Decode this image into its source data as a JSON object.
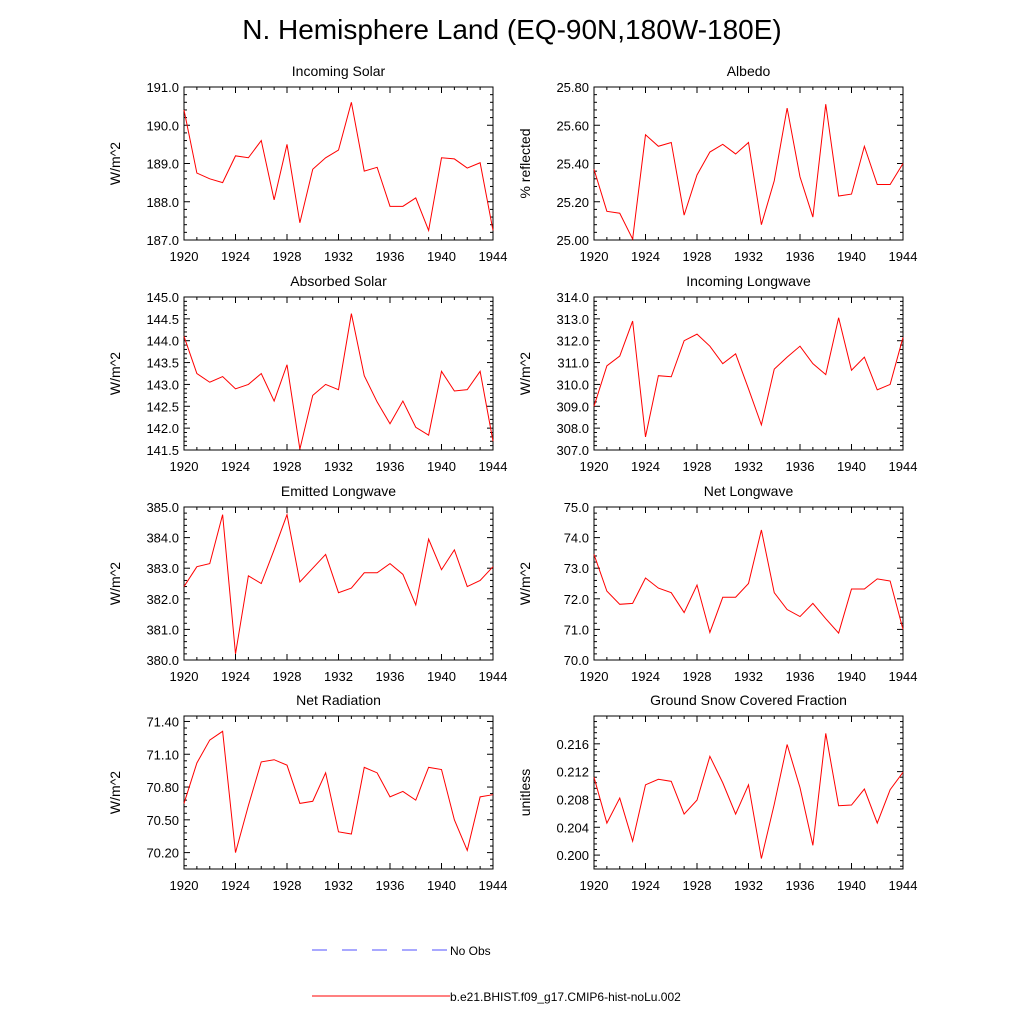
{
  "figure": {
    "title": "N. Hemisphere Land (EQ-90N,180W-180E)"
  },
  "legend": {
    "entries": [
      {
        "label": "No Obs",
        "color": "#5050ff",
        "dashed": true
      },
      {
        "label": "b.e21.BHIST.f09_g17.CMIP6-hist-noLu.002",
        "color": "#ff0000",
        "dashed": false
      }
    ]
  },
  "chart_data": [
    {
      "type": "line",
      "title": "Incoming Solar",
      "ylabel": "W/m^2",
      "xlabel": "",
      "xlim": [
        1920,
        1944
      ],
      "ylim": [
        187.0,
        191.0
      ],
      "xticks": [
        1920,
        1924,
        1928,
        1932,
        1936,
        1940,
        1944
      ],
      "yticks": [
        "187.0",
        "188.0",
        "189.0",
        "190.0",
        "191.0"
      ],
      "x": [
        1920,
        1921,
        1922,
        1923,
        1924,
        1925,
        1926,
        1927,
        1928,
        1929,
        1930,
        1931,
        1932,
        1933,
        1934,
        1935,
        1936,
        1937,
        1938,
        1939,
        1940,
        1941,
        1942,
        1943,
        1944
      ],
      "series": [
        {
          "color": "#ff0000",
          "values": [
            190.4,
            188.75,
            188.6,
            188.5,
            189.2,
            189.15,
            189.6,
            188.05,
            189.5,
            187.45,
            188.85,
            189.15,
            189.35,
            190.6,
            188.8,
            188.9,
            187.88,
            187.88,
            188.1,
            187.25,
            189.15,
            189.12,
            188.88,
            189.02,
            187.25
          ]
        }
      ]
    },
    {
      "type": "line",
      "title": "Albedo",
      "ylabel": "% reflected",
      "xlabel": "",
      "xlim": [
        1920,
        1944
      ],
      "ylim": [
        25.0,
        25.8
      ],
      "xticks": [
        1920,
        1924,
        1928,
        1932,
        1936,
        1940,
        1944
      ],
      "yticks": [
        "25.00",
        "25.20",
        "25.40",
        "25.60",
        "25.80"
      ],
      "x": [
        1920,
        1921,
        1922,
        1923,
        1924,
        1925,
        1926,
        1927,
        1928,
        1929,
        1930,
        1931,
        1932,
        1933,
        1934,
        1935,
        1936,
        1937,
        1938,
        1939,
        1940,
        1941,
        1942,
        1943,
        1944
      ],
      "series": [
        {
          "color": "#ff0000",
          "values": [
            25.37,
            25.15,
            25.14,
            25.005,
            25.55,
            25.49,
            25.51,
            25.13,
            25.34,
            25.46,
            25.5,
            25.45,
            25.51,
            25.08,
            25.31,
            25.69,
            25.33,
            25.12,
            25.71,
            25.23,
            25.24,
            25.49,
            25.29,
            25.29,
            25.4
          ]
        }
      ]
    },
    {
      "type": "line",
      "title": "Absorbed Solar",
      "ylabel": "W/m^2",
      "xlabel": "",
      "xlim": [
        1920,
        1944
      ],
      "ylim": [
        141.5,
        145.0
      ],
      "xticks": [
        1920,
        1924,
        1928,
        1932,
        1936,
        1940,
        1944
      ],
      "yticks": [
        "141.5",
        "142.0",
        "142.5",
        "143.0",
        "143.5",
        "144.0",
        "144.5",
        "145.0"
      ],
      "x": [
        1920,
        1921,
        1922,
        1923,
        1924,
        1925,
        1926,
        1927,
        1928,
        1929,
        1930,
        1931,
        1932,
        1933,
        1934,
        1935,
        1936,
        1937,
        1938,
        1939,
        1940,
        1941,
        1942,
        1943,
        1944
      ],
      "series": [
        {
          "color": "#ff0000",
          "values": [
            144.1,
            143.25,
            143.05,
            143.18,
            142.9,
            143.0,
            143.25,
            142.62,
            143.45,
            141.52,
            142.75,
            143.0,
            142.88,
            144.62,
            143.2,
            142.6,
            142.1,
            142.62,
            142.02,
            141.84,
            143.3,
            142.85,
            142.88,
            143.3,
            141.7
          ]
        }
      ]
    },
    {
      "type": "line",
      "title": "Incoming Longwave",
      "ylabel": "W/m^2",
      "xlabel": "",
      "xlim": [
        1920,
        1944
      ],
      "ylim": [
        307.0,
        314.0
      ],
      "xticks": [
        1920,
        1924,
        1928,
        1932,
        1936,
        1940,
        1944
      ],
      "yticks": [
        "307.0",
        "308.0",
        "309.0",
        "310.0",
        "311.0",
        "312.0",
        "313.0",
        "314.0"
      ],
      "x": [
        1920,
        1921,
        1922,
        1923,
        1924,
        1925,
        1926,
        1927,
        1928,
        1929,
        1930,
        1931,
        1932,
        1933,
        1934,
        1935,
        1936,
        1937,
        1938,
        1939,
        1940,
        1941,
        1942,
        1943,
        1944
      ],
      "series": [
        {
          "color": "#ff0000",
          "values": [
            309.0,
            310.85,
            311.3,
            312.9,
            307.6,
            310.4,
            310.35,
            312.0,
            312.3,
            311.75,
            310.95,
            311.4,
            309.8,
            308.15,
            310.7,
            311.25,
            311.75,
            310.95,
            310.45,
            313.05,
            310.65,
            311.25,
            309.75,
            310.0,
            312.15
          ]
        }
      ]
    },
    {
      "type": "line",
      "title": "Emitted Longwave",
      "ylabel": "W/m^2",
      "xlabel": "",
      "xlim": [
        1920,
        1944
      ],
      "ylim": [
        380.0,
        385.0
      ],
      "xticks": [
        1920,
        1924,
        1928,
        1932,
        1936,
        1940,
        1944
      ],
      "yticks": [
        "380.0",
        "381.0",
        "382.0",
        "383.0",
        "384.0",
        "385.0"
      ],
      "x": [
        1920,
        1921,
        1922,
        1923,
        1924,
        1925,
        1926,
        1927,
        1928,
        1929,
        1930,
        1931,
        1932,
        1933,
        1934,
        1935,
        1936,
        1937,
        1938,
        1939,
        1940,
        1941,
        1942,
        1943,
        1944
      ],
      "series": [
        {
          "color": "#ff0000",
          "values": [
            382.4,
            383.05,
            383.15,
            384.75,
            380.2,
            382.75,
            382.5,
            383.6,
            384.75,
            382.55,
            383.0,
            383.45,
            382.2,
            382.35,
            382.85,
            382.85,
            383.15,
            382.8,
            381.8,
            383.95,
            382.95,
            383.6,
            382.4,
            382.6,
            383.05
          ]
        }
      ]
    },
    {
      "type": "line",
      "title": "Net Longwave",
      "ylabel": "W/m^2",
      "xlabel": "",
      "xlim": [
        1920,
        1944
      ],
      "ylim": [
        70.0,
        75.0
      ],
      "xticks": [
        1920,
        1924,
        1928,
        1932,
        1936,
        1940,
        1944
      ],
      "yticks": [
        "70.0",
        "71.0",
        "72.0",
        "73.0",
        "74.0",
        "75.0"
      ],
      "x": [
        1920,
        1921,
        1922,
        1923,
        1924,
        1925,
        1926,
        1927,
        1928,
        1929,
        1930,
        1931,
        1932,
        1933,
        1934,
        1935,
        1936,
        1937,
        1938,
        1939,
        1940,
        1941,
        1942,
        1943,
        1944
      ],
      "series": [
        {
          "color": "#ff0000",
          "values": [
            73.45,
            72.25,
            71.82,
            71.85,
            72.68,
            72.35,
            72.2,
            71.55,
            72.45,
            70.9,
            72.05,
            72.05,
            72.5,
            74.25,
            72.2,
            71.65,
            71.42,
            71.85,
            71.35,
            70.88,
            72.32,
            72.32,
            72.65,
            72.58,
            71.0
          ]
        }
      ]
    },
    {
      "type": "line",
      "title": "Net Radiation",
      "ylabel": "W/m^2",
      "xlabel": "",
      "xlim": [
        1920,
        1944
      ],
      "ylim": [
        70.05,
        71.45
      ],
      "xticks": [
        1920,
        1924,
        1928,
        1932,
        1936,
        1940,
        1944
      ],
      "yticks": [
        "70.20",
        "70.50",
        "70.80",
        "71.10",
        "71.40"
      ],
      "x": [
        1920,
        1921,
        1922,
        1923,
        1924,
        1925,
        1926,
        1927,
        1928,
        1929,
        1930,
        1931,
        1932,
        1933,
        1934,
        1935,
        1936,
        1937,
        1938,
        1939,
        1940,
        1941,
        1942,
        1943,
        1944
      ],
      "series": [
        {
          "color": "#ff0000",
          "values": [
            70.65,
            71.02,
            71.23,
            71.31,
            70.2,
            70.63,
            71.03,
            71.05,
            71.0,
            70.65,
            70.67,
            70.93,
            70.39,
            70.37,
            70.98,
            70.93,
            70.71,
            70.76,
            70.68,
            70.98,
            70.96,
            70.5,
            70.22,
            70.71,
            70.73
          ]
        }
      ]
    },
    {
      "type": "line",
      "title": "Ground Snow Covered Fraction",
      "ylabel": "unitless",
      "xlabel": "",
      "xlim": [
        1920,
        1944
      ],
      "ylim": [
        0.198,
        0.22
      ],
      "xticks": [
        1920,
        1924,
        1928,
        1932,
        1936,
        1940,
        1944
      ],
      "yticks": [
        "0.200",
        "0.204",
        "0.208",
        "0.212",
        "0.216"
      ],
      "x": [
        1920,
        1921,
        1922,
        1923,
        1924,
        1925,
        1926,
        1927,
        1928,
        1929,
        1930,
        1931,
        1932,
        1933,
        1934,
        1935,
        1936,
        1937,
        1938,
        1939,
        1940,
        1941,
        1942,
        1943,
        1944
      ],
      "series": [
        {
          "color": "#ff0000",
          "values": [
            0.2112,
            0.2046,
            0.2082,
            0.202,
            0.2101,
            0.2109,
            0.2106,
            0.2059,
            0.2079,
            0.2142,
            0.2104,
            0.2059,
            0.2101,
            0.1995,
            0.2073,
            0.2159,
            0.2097,
            0.2014,
            0.2175,
            0.2071,
            0.2072,
            0.2095,
            0.2046,
            0.2094,
            0.2119
          ]
        }
      ]
    }
  ]
}
